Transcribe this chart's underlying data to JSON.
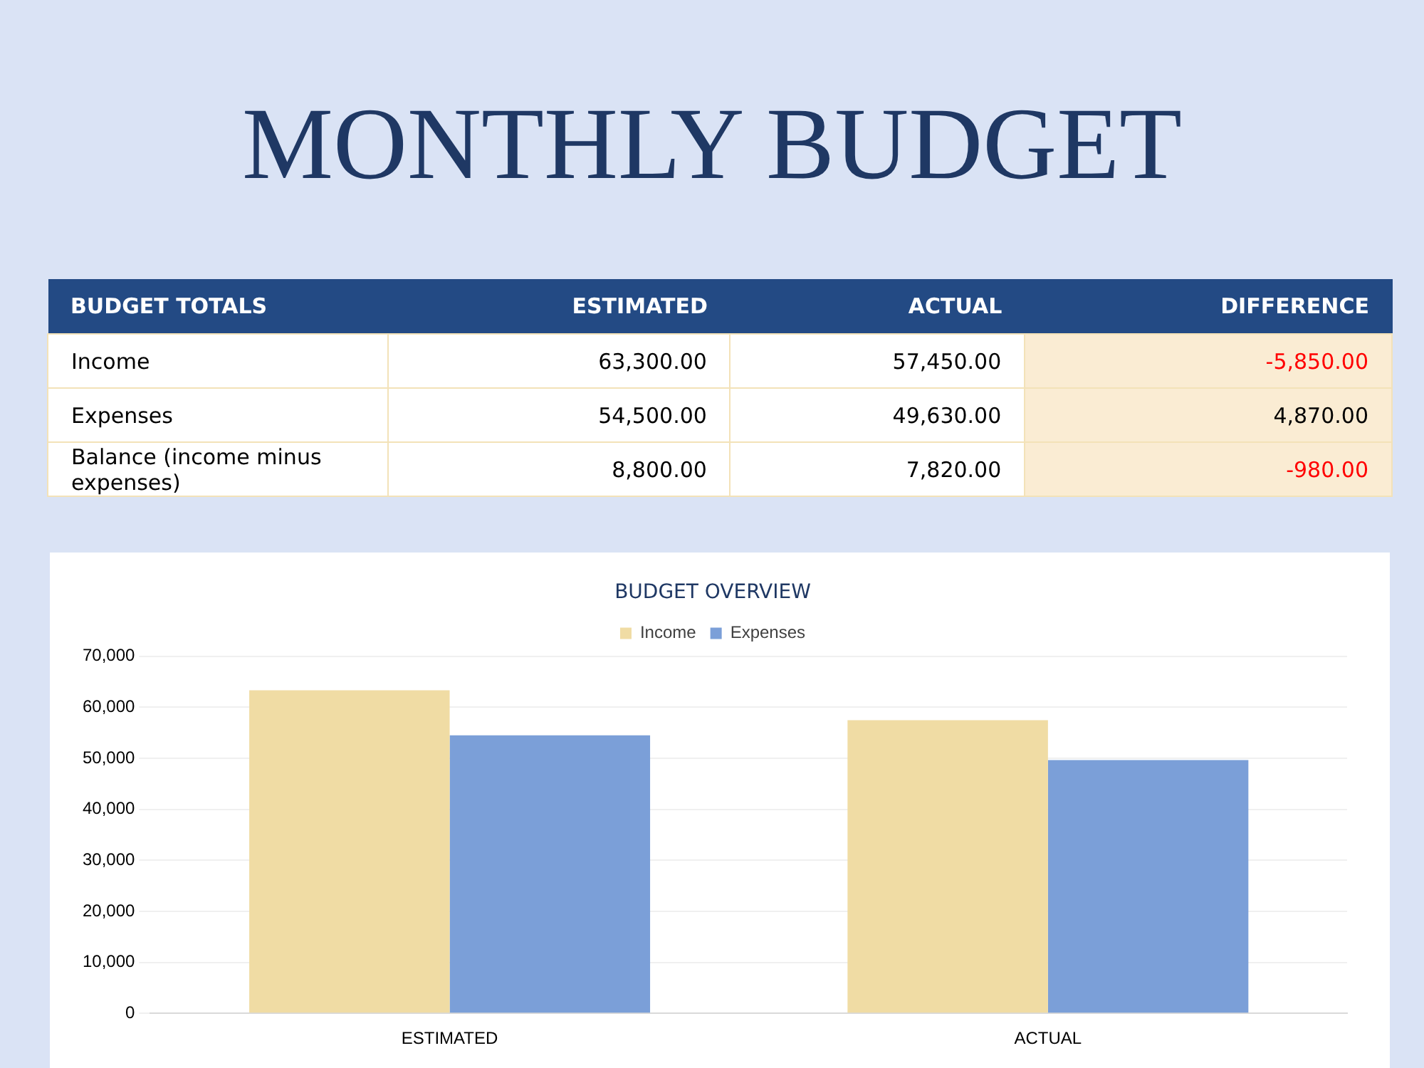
{
  "chart_data": [
    {
      "type": "other",
      "title": "MONTHLY BUDGET",
      "annotations": [
        "BUDGET TOTALS",
        "ESTIMATED",
        "ACTUAL",
        "DIFFERENCE",
        "Income",
        "63,300.00",
        "57,450.00",
        "-5,850.00",
        "Expenses",
        "54,500.00",
        "49,630.00",
        "4,870.00",
        "Balance (income minus expenses)",
        "8,800.00",
        "7,820.00",
        "-980.00"
      ]
    },
    {
      "type": "bar",
      "title": "BUDGET OVERVIEW",
      "categories": [
        "ESTIMATED",
        "ACTUAL"
      ],
      "series": [
        {
          "name": "Income",
          "color": "#f0dca4",
          "values": [
            63300,
            57450
          ]
        },
        {
          "name": "Expenses",
          "color": "#7b9fd8",
          "values": [
            54500,
            49630
          ]
        }
      ],
      "ylim": [
        0,
        70000
      ],
      "yticks": [
        {
          "value": 0,
          "label": "0"
        },
        {
          "value": 10000,
          "label": "10,000"
        },
        {
          "value": 20000,
          "label": "20,000"
        },
        {
          "value": 30000,
          "label": "30,000"
        },
        {
          "value": 40000,
          "label": "40,000"
        },
        {
          "value": 50000,
          "label": "50,000"
        },
        {
          "value": 60000,
          "label": "60,000"
        },
        {
          "value": 70000,
          "label": "70,000"
        }
      ],
      "grid": "y",
      "legend": "top"
    }
  ]
}
